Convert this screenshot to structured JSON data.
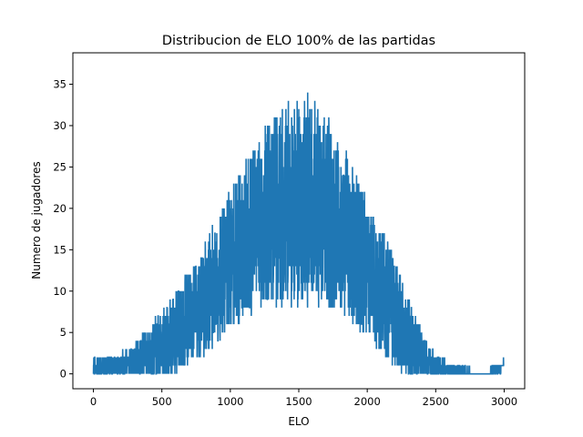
{
  "chart_data": {
    "type": "line",
    "title": "Distribucion de ELO 100% de las partidas",
    "xlabel": "ELO",
    "ylabel": "Numero de jugadores",
    "xlim": [
      -150,
      3150
    ],
    "ylim": [
      -1.8,
      38.8
    ],
    "xticks": [
      0,
      500,
      1000,
      1500,
      2000,
      2500,
      3000
    ],
    "yticks": [
      0,
      5,
      10,
      15,
      20,
      25,
      30,
      35
    ],
    "grid": false,
    "line_color": "#1f77b4",
    "series": [
      {
        "x": [
          0,
          50,
          100,
          150,
          200,
          250,
          300,
          350,
          400,
          450,
          500,
          550,
          600,
          650,
          700,
          750,
          800,
          850,
          900,
          950,
          1000,
          1050,
          1100,
          1150,
          1200,
          1250,
          1300,
          1350,
          1400,
          1450,
          1500,
          1550,
          1600,
          1650,
          1700,
          1750,
          1800,
          1850,
          1900,
          1950,
          2000,
          2050,
          2100,
          2150,
          2200,
          2250,
          2300,
          2350,
          2400,
          2450,
          2500,
          2550,
          2600,
          2650,
          2700,
          2750,
          2800,
          2850,
          2900,
          2950,
          3000
        ],
        "values": [
          0.5,
          0.7,
          0.9,
          1.0,
          1.1,
          1.3,
          1.6,
          2.0,
          2.5,
          3.0,
          3.6,
          4.3,
          5.0,
          5.9,
          6.8,
          7.8,
          8.9,
          10.0,
          11.2,
          12.4,
          13.6,
          14.8,
          16.0,
          17.1,
          18.1,
          19.0,
          19.7,
          20.3,
          20.7,
          21.0,
          21.1,
          21.0,
          20.7,
          20.2,
          19.5,
          18.7,
          17.7,
          16.6,
          15.4,
          14.1,
          12.8,
          11.5,
          10.2,
          8.9,
          7.5,
          6.0,
          4.6,
          3.3,
          2.2,
          1.5,
          1.0,
          0.6,
          0.4,
          0.3,
          0.2,
          0.2,
          0.1,
          0.1,
          0.2,
          0.5,
          1.0
        ],
        "spread": [
          1.2,
          1.2,
          1.3,
          1.3,
          1.4,
          1.6,
          2.0,
          2.5,
          3.0,
          3.5,
          4.0,
          4.4,
          4.8,
          5.2,
          5.6,
          6.0,
          6.5,
          7.0,
          7.5,
          8.0,
          8.5,
          9.0,
          9.5,
          10.0,
          10.5,
          11.0,
          11.5,
          12.0,
          12.5,
          13.0,
          13.5,
          13.0,
          12.5,
          12.0,
          11.5,
          11.0,
          10.5,
          10.0,
          9.5,
          9.0,
          8.5,
          8.0,
          7.5,
          7.0,
          6.5,
          6.0,
          5.0,
          4.0,
          3.0,
          2.2,
          1.6,
          1.2,
          1.0,
          0.8,
          0.6,
          0.4,
          0.2,
          0.2,
          0.3,
          0.5,
          0.6
        ]
      }
    ]
  }
}
